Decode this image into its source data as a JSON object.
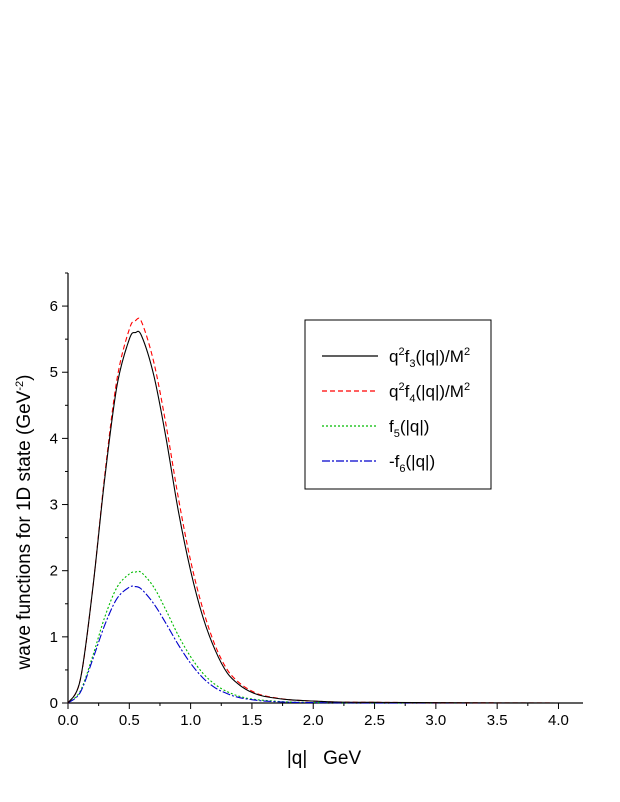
{
  "chart_data": {
    "type": "line",
    "xlabel": "|q|   GeV",
    "ylabel_main": "wave functions for 1D state (GeV",
    "ylabel_sup": "-2",
    "ylabel_end": ")",
    "xlim": [
      0.0,
      4.2
    ],
    "ylim": [
      0,
      6.5
    ],
    "xticks": [
      "0.0",
      "0.5",
      "1.0",
      "1.5",
      "2.0",
      "2.5",
      "3.0",
      "3.5",
      "4.0"
    ],
    "yticks": [
      "0",
      "1",
      "2",
      "3",
      "4",
      "5",
      "6"
    ],
    "grid": false,
    "legend_position": "top-right",
    "x": [
      0.0,
      0.1,
      0.2,
      0.3,
      0.4,
      0.5,
      0.55,
      0.6,
      0.7,
      0.8,
      0.9,
      1.0,
      1.1,
      1.2,
      1.3,
      1.4,
      1.5,
      1.6,
      1.8,
      2.0,
      2.2,
      2.5,
      3.0,
      3.5,
      4.0
    ],
    "series": [
      {
        "name": "q2f3(|q|)/M2",
        "color": "#000000",
        "dash": "",
        "values": [
          0.0,
          0.35,
          1.7,
          3.4,
          4.8,
          5.5,
          5.6,
          5.55,
          4.95,
          4.0,
          2.9,
          2.0,
          1.3,
          0.8,
          0.45,
          0.27,
          0.16,
          0.1,
          0.05,
          0.03,
          0.015,
          0.01,
          0.005,
          0.002,
          0.0
        ]
      },
      {
        "name": "q2f4(|q|)/M2",
        "color": "#ff0000",
        "dash": "5,3",
        "values": [
          0.0,
          0.35,
          1.7,
          3.45,
          4.9,
          5.65,
          5.78,
          5.76,
          5.15,
          4.2,
          3.1,
          2.15,
          1.42,
          0.87,
          0.5,
          0.3,
          0.18,
          0.11,
          0.05,
          0.03,
          0.015,
          0.01,
          0.005,
          0.002,
          0.0
        ]
      },
      {
        "name": "f5(|q|)",
        "color": "#00bb00",
        "dash": "2,2",
        "values": [
          0.0,
          0.18,
          0.7,
          1.3,
          1.75,
          1.95,
          1.98,
          1.97,
          1.75,
          1.4,
          1.02,
          0.7,
          0.45,
          0.28,
          0.17,
          0.1,
          0.06,
          0.04,
          0.015,
          0.008,
          0.004,
          0.002,
          0.0,
          0.0,
          0.0
        ]
      },
      {
        "name": "-f6(|q|)",
        "color": "#0000cc",
        "dash": "8,2,2,2",
        "values": [
          0.0,
          0.16,
          0.65,
          1.18,
          1.58,
          1.75,
          1.76,
          1.72,
          1.5,
          1.2,
          0.88,
          0.6,
          0.38,
          0.23,
          0.14,
          0.08,
          0.05,
          0.03,
          0.012,
          0.006,
          0.003,
          0.001,
          0.0,
          0.0,
          0.0
        ]
      }
    ],
    "legend_labels": [
      {
        "base": "q",
        "sup1": "2",
        "mid": "f",
        "sub": "3",
        "rest": "(|q|)/M",
        "sup2": "2"
      },
      {
        "base": "q",
        "sup1": "2",
        "mid": "f",
        "sub": "4",
        "rest": "(|q|)/M",
        "sup2": "2"
      },
      {
        "base": "",
        "sup1": "",
        "mid": "f",
        "sub": "5",
        "rest": "(|q|)",
        "sup2": ""
      },
      {
        "base": "",
        "sup1": "",
        "mid": "-f",
        "sub": "6",
        "rest": "(|q|)",
        "sup2": ""
      }
    ]
  }
}
